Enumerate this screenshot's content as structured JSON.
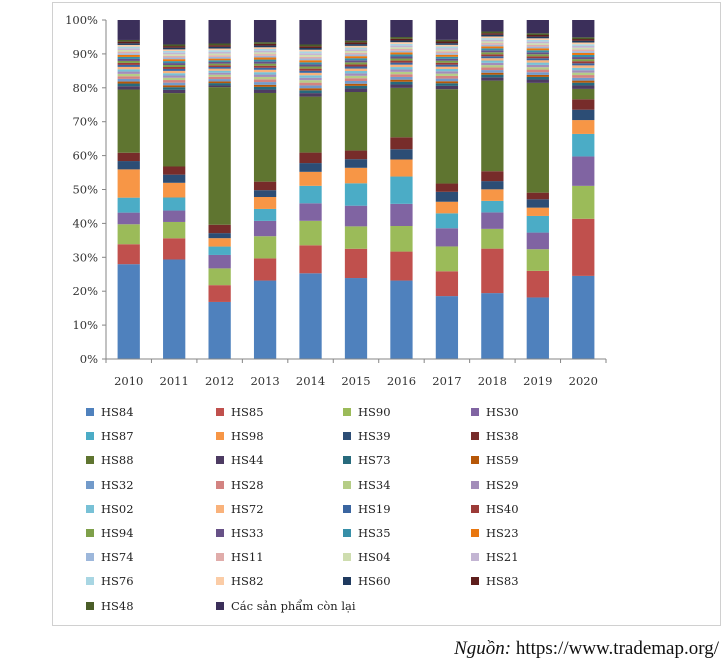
{
  "chart_data": {
    "type": "bar",
    "stacked": true,
    "title": "",
    "xlabel": "",
    "ylabel": "",
    "ylim": [
      0,
      100
    ],
    "y_tick_labels": [
      "0%",
      "10%",
      "20%",
      "30%",
      "40%",
      "50%",
      "60%",
      "70%",
      "80%",
      "90%",
      "100%"
    ],
    "grid": false,
    "legend_position": "bottom",
    "categories": [
      "2010",
      "2011",
      "2012",
      "2013",
      "2014",
      "2015",
      "2016",
      "2017",
      "2018",
      "2019",
      "2020"
    ],
    "series": [
      {
        "name": "HS84",
        "color": "#4F81BD",
        "values": [
          28.5,
          30.5,
          17,
          23,
          24.5,
          23.5,
          23,
          19,
          20,
          18.5,
          24
        ]
      },
      {
        "name": "HS85",
        "color": "#C0504D",
        "values": [
          6,
          6.5,
          5,
          6.5,
          8,
          8.5,
          8.5,
          7.5,
          13.5,
          8,
          16.5
        ]
      },
      {
        "name": "HS90",
        "color": "#9BBB59",
        "values": [
          6,
          5,
          5,
          6.5,
          7,
          6.5,
          7.5,
          7.5,
          6,
          6.5,
          9.5
        ]
      },
      {
        "name": "HS30",
        "color": "#8064A2",
        "values": [
          3.5,
          3.5,
          4,
          4.5,
          5,
          6,
          6.5,
          5.5,
          5,
          5,
          8.5
        ]
      },
      {
        "name": "HS87",
        "color": "#4BACC6",
        "values": [
          4.5,
          4,
          2.5,
          3.5,
          5,
          6.5,
          8,
          4.5,
          3.5,
          5,
          6.5
        ]
      },
      {
        "name": "HS98",
        "color": "#F79646",
        "values": [
          8.5,
          4.5,
          2.5,
          3.5,
          4,
          4.5,
          5,
          3.5,
          3.5,
          2.5,
          4
        ]
      },
      {
        "name": "HS39",
        "color": "#2C4D75",
        "values": [
          2.5,
          2.5,
          1.5,
          2,
          2.5,
          2.5,
          3,
          3,
          2.5,
          2.5,
          3
        ]
      },
      {
        "name": "HS38",
        "color": "#772C2A",
        "values": [
          2.5,
          2.5,
          2.5,
          2.5,
          3,
          2.5,
          3.5,
          2.5,
          3,
          2,
          3
        ]
      },
      {
        "name": "HS88",
        "color": "#5F7530",
        "values": [
          19,
          22.5,
          41,
          26,
          16,
          17,
          14.5,
          28.5,
          27.5,
          33,
          3
        ]
      },
      {
        "name": "HS44",
        "color": "#4D3B62",
        "values": [
          1,
          1,
          0.5,
          1,
          1,
          1,
          1,
          1,
          1,
          1,
          1
        ]
      },
      {
        "name": "HS73",
        "color": "#276A7C",
        "values": [
          0.8,
          0.8,
          0.7,
          0.8,
          0.8,
          0.8,
          0.8,
          0.8,
          0.8,
          0.8,
          0.8
        ]
      },
      {
        "name": "HS59",
        "color": "#B65708",
        "values": [
          0.6,
          0.6,
          0.5,
          0.6,
          0.6,
          0.6,
          0.6,
          0.6,
          0.6,
          0.6,
          0.6
        ]
      },
      {
        "name": "HS32",
        "color": "#729ACA",
        "values": [
          0.8,
          0.8,
          0.7,
          0.8,
          0.8,
          0.8,
          0.8,
          0.8,
          0.8,
          0.8,
          0.8
        ]
      },
      {
        "name": "HS28",
        "color": "#D38381",
        "values": [
          0.8,
          0.8,
          0.7,
          0.8,
          0.8,
          0.8,
          0.8,
          0.8,
          0.8,
          0.8,
          0.8
        ]
      },
      {
        "name": "HS34",
        "color": "#B5CD86",
        "values": [
          0.7,
          0.7,
          0.6,
          0.7,
          0.7,
          0.7,
          0.7,
          0.7,
          0.7,
          0.7,
          0.7
        ]
      },
      {
        "name": "HS29",
        "color": "#A38DBA",
        "values": [
          0.7,
          0.7,
          0.6,
          0.7,
          0.7,
          0.7,
          0.7,
          0.7,
          0.7,
          0.7,
          0.7
        ]
      },
      {
        "name": "HS02",
        "color": "#78C1D6",
        "values": [
          0.7,
          0.7,
          0.6,
          0.7,
          0.7,
          0.7,
          0.7,
          0.7,
          0.7,
          0.7,
          0.7
        ]
      },
      {
        "name": "HS72",
        "color": "#F9B27B",
        "values": [
          0.7,
          0.7,
          0.6,
          0.7,
          0.7,
          0.7,
          0.7,
          0.7,
          0.7,
          0.7,
          0.7
        ]
      },
      {
        "name": "HS19",
        "color": "#3A65A0",
        "values": [
          0.6,
          0.6,
          0.5,
          0.6,
          0.6,
          0.6,
          0.6,
          0.6,
          0.6,
          0.6,
          0.6
        ]
      },
      {
        "name": "HS40",
        "color": "#9C3B38",
        "values": [
          0.6,
          0.6,
          0.5,
          0.6,
          0.6,
          0.6,
          0.6,
          0.6,
          0.6,
          0.6,
          0.6
        ]
      },
      {
        "name": "HS94",
        "color": "#7EA04A",
        "values": [
          0.6,
          0.6,
          0.5,
          0.6,
          0.6,
          0.6,
          0.6,
          0.6,
          0.6,
          0.6,
          0.6
        ]
      },
      {
        "name": "HS33",
        "color": "#675187",
        "values": [
          0.6,
          0.6,
          0.5,
          0.6,
          0.6,
          0.6,
          0.6,
          0.6,
          0.6,
          0.6,
          0.6
        ]
      },
      {
        "name": "HS35",
        "color": "#378FA8",
        "values": [
          0.6,
          0.6,
          0.5,
          0.6,
          0.6,
          0.6,
          0.6,
          0.6,
          0.6,
          0.6,
          0.6
        ]
      },
      {
        "name": "HS23",
        "color": "#E9770F",
        "values": [
          0.6,
          0.6,
          0.5,
          0.6,
          0.6,
          0.6,
          0.6,
          0.6,
          0.6,
          0.6,
          0.6
        ]
      },
      {
        "name": "HS74",
        "color": "#9DB7DB",
        "values": [
          0.5,
          0.5,
          0.5,
          0.5,
          0.5,
          0.5,
          0.5,
          0.5,
          0.5,
          0.5,
          0.5
        ]
      },
      {
        "name": "HS11",
        "color": "#E0ACAA",
        "values": [
          0.5,
          0.5,
          0.5,
          0.5,
          0.5,
          0.5,
          0.5,
          0.5,
          0.5,
          0.5,
          0.5
        ]
      },
      {
        "name": "HS04",
        "color": "#CEDDAF",
        "values": [
          0.5,
          0.5,
          0.5,
          0.5,
          0.5,
          0.5,
          0.5,
          0.5,
          0.5,
          0.5,
          0.5
        ]
      },
      {
        "name": "HS21",
        "color": "#C3B5D3",
        "values": [
          0.5,
          0.5,
          0.5,
          0.5,
          0.5,
          0.5,
          0.5,
          0.5,
          0.5,
          0.5,
          0.5
        ]
      },
      {
        "name": "HS76",
        "color": "#A8D6E3",
        "values": [
          0.5,
          0.5,
          0.5,
          0.5,
          0.5,
          0.5,
          0.5,
          0.5,
          0.5,
          0.5,
          0.5
        ]
      },
      {
        "name": "HS82",
        "color": "#FBCCA6",
        "values": [
          0.5,
          0.5,
          0.5,
          0.5,
          0.5,
          0.5,
          0.5,
          0.5,
          0.5,
          0.5,
          0.5
        ]
      },
      {
        "name": "HS60",
        "color": "#1F3A5F",
        "values": [
          0.5,
          0.5,
          0.5,
          0.5,
          0.5,
          0.5,
          0.5,
          0.5,
          0.5,
          0.5,
          0.5
        ]
      },
      {
        "name": "HS83",
        "color": "#5E1E1C",
        "values": [
          0.5,
          0.5,
          0.5,
          0.5,
          0.5,
          0.5,
          0.5,
          0.5,
          0.5,
          0.5,
          0.5
        ]
      },
      {
        "name": "HS48",
        "color": "#4A5D27",
        "values": [
          0.5,
          0.5,
          0.5,
          0.5,
          0.5,
          0.5,
          0.5,
          0.5,
          0.5,
          0.5,
          0.5
        ]
      },
      {
        "name": "Các sản phẩm còn lại",
        "color": "#3B2F5A",
        "values": [
          6,
          7.5,
          7,
          6.5,
          7,
          6,
          5,
          6,
          3.5,
          4,
          5
        ]
      }
    ]
  },
  "source": {
    "prefix": "Nguồn:",
    "url": "https://www.trademap.org/"
  }
}
